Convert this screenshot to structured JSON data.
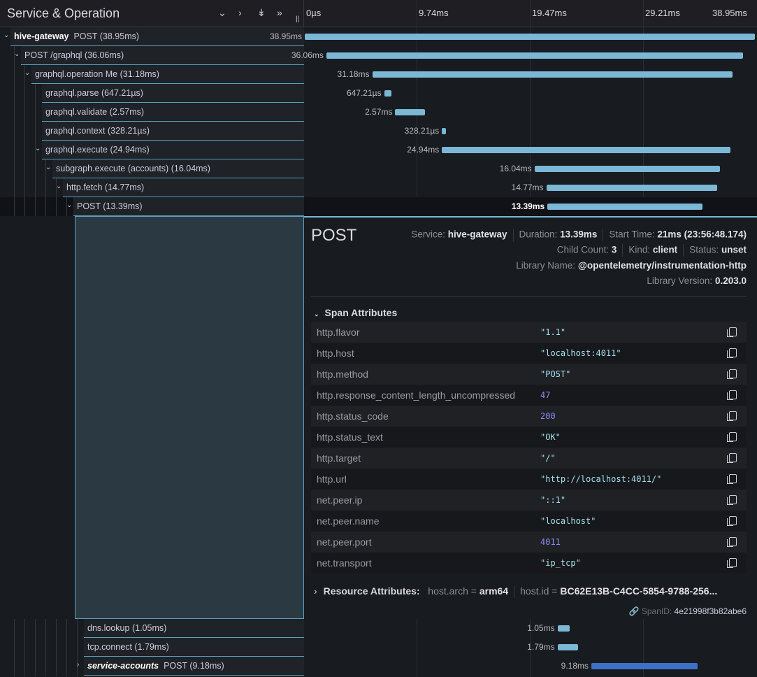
{
  "header": {
    "title": "Service & Operation",
    "ticks": [
      "0µs",
      "9.74ms",
      "19.47ms",
      "29.21ms",
      "38.95ms"
    ]
  },
  "chart_data": {
    "type": "gantt",
    "unit": "ms",
    "range": [
      0,
      38.95
    ],
    "spans": [
      {
        "service": "hive-gateway",
        "name": "POST",
        "label": "(38.95ms)",
        "start": 0,
        "duration": 38.95,
        "duration_label": "38.95ms",
        "level": 0,
        "expanded": true
      },
      {
        "name": "POST /graphql",
        "label": "(36.06ms)",
        "start": 1.87,
        "duration": 36.06,
        "duration_label": "36.06ms",
        "level": 1,
        "expanded": true
      },
      {
        "name": "graphql.operation Me",
        "label": "(31.18ms)",
        "start": 5.84,
        "duration": 31.18,
        "duration_label": "31.18ms",
        "level": 2,
        "expanded": true
      },
      {
        "name": "graphql.parse",
        "label": "(647.21µs)",
        "start": 6.87,
        "duration": 0.647,
        "duration_label": "647.21µs",
        "level": 3
      },
      {
        "name": "graphql.validate",
        "label": "(2.57ms)",
        "start": 7.83,
        "duration": 2.57,
        "duration_label": "2.57ms",
        "level": 3
      },
      {
        "name": "graphql.context",
        "label": "(328.21µs)",
        "start": 11.87,
        "duration": 0.328,
        "duration_label": "328.21µs",
        "level": 3
      },
      {
        "name": "graphql.execute",
        "label": "(24.94ms)",
        "start": 11.87,
        "duration": 24.94,
        "duration_label": "24.94ms",
        "level": 3,
        "expanded": true
      },
      {
        "name": "subgraph.execute (accounts)",
        "label": "(16.04ms)",
        "start": 19.88,
        "duration": 16.04,
        "duration_label": "16.04ms",
        "level": 4,
        "expanded": true
      },
      {
        "name": "http.fetch",
        "label": "(14.77ms)",
        "start": 20.9,
        "duration": 14.77,
        "duration_label": "14.77ms",
        "level": 5,
        "expanded": true
      },
      {
        "name": "POST",
        "label": "(13.39ms)",
        "start": 21,
        "duration": 13.39,
        "duration_label": "13.39ms",
        "level": 6,
        "expanded": true,
        "selected": true
      }
    ],
    "after_detail": [
      {
        "name": "dns.lookup",
        "label": "(1.05ms)",
        "start": 21.87,
        "duration": 1.05,
        "duration_label": "1.05ms",
        "level": 7
      },
      {
        "name": "tcp.connect",
        "label": "(1.79ms)",
        "start": 21.87,
        "duration": 1.79,
        "duration_label": "1.79ms",
        "level": 7
      },
      {
        "service": "service-accounts",
        "name": "POST",
        "label": "(9.18ms)",
        "start": 24.8,
        "duration": 9.18,
        "duration_label": "9.18ms",
        "level": 7,
        "expanded": false,
        "color": "#3d71c7"
      }
    ]
  },
  "detail": {
    "title": "POST",
    "service_label": "Service:",
    "service": "hive-gateway",
    "duration_label": "Duration:",
    "duration": "13.39ms",
    "start_label": "Start Time:",
    "start": "21ms (23:56:48.174)",
    "child_label": "Child Count:",
    "child": "3",
    "kind_label": "Kind:",
    "kind": "client",
    "status_label": "Status:",
    "status": "unset",
    "libname_label": "Library Name:",
    "libname": "@opentelemetry/instrumentation-http",
    "libver_label": "Library Version:",
    "libver": "0.203.0",
    "span_attrs_title": "Span Attributes",
    "attributes": [
      {
        "k": "http.flavor",
        "v": "\"1.1\""
      },
      {
        "k": "http.host",
        "v": "\"localhost:4011\""
      },
      {
        "k": "http.method",
        "v": "\"POST\""
      },
      {
        "k": "http.response_content_length_uncompressed",
        "v": "47",
        "num": true
      },
      {
        "k": "http.status_code",
        "v": "200",
        "num": true
      },
      {
        "k": "http.status_text",
        "v": "\"OK\""
      },
      {
        "k": "http.target",
        "v": "\"/\""
      },
      {
        "k": "http.url",
        "v": "\"http://localhost:4011/\""
      },
      {
        "k": "net.peer.ip",
        "v": "\"::1\""
      },
      {
        "k": "net.peer.name",
        "v": "\"localhost\""
      },
      {
        "k": "net.peer.port",
        "v": "4011",
        "num": true
      },
      {
        "k": "net.transport",
        "v": "\"ip_tcp\""
      }
    ],
    "resource_title": "Resource Attributes:",
    "res1_k": "host.arch",
    "res1_v": "arm64",
    "res2_k": "host.id",
    "res2_v": "BC62E13B-C4CC-5854-9788-256...",
    "eq": "=",
    "spanid_label": "SpanID:",
    "spanid": "4e21998f3b82abe6"
  }
}
